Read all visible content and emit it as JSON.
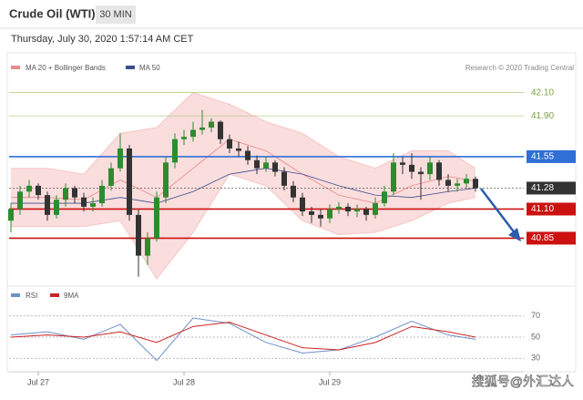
{
  "header": {
    "title": "Crude Oil (WTI)",
    "interval": "30 MIN",
    "timestamp": "Thursday, July 30, 2020 1:57:14 AM CET"
  },
  "chart_data": {
    "type": "candlestick",
    "legend": [
      "MA 20 + Bollinger Bands",
      "MA 50"
    ],
    "source": "Research © 2020 Trading Central",
    "colors": {
      "up": "#2e8b2e",
      "down": "#333333",
      "band": "#f7c6c6",
      "ma20": "#e88a8a",
      "ma50": "#3b4f8c"
    },
    "ylim": [
      40.47,
      42.23
    ],
    "xlim": [
      0,
      51
    ],
    "xticks": [
      {
        "value": 3,
        "label": "Jul 27"
      },
      {
        "value": 19,
        "label": "Jul 28"
      },
      {
        "value": 35,
        "label": "Jul 29"
      }
    ],
    "levels": [
      {
        "value": 42.1,
        "label": "42.10",
        "color": "#a9c77a",
        "style": "text"
      },
      {
        "value": 41.9,
        "label": "41.90",
        "color": "#a9c77a",
        "style": "text"
      },
      {
        "value": 41.55,
        "label": "41.55",
        "color": "#2f6fd6",
        "style": "box"
      },
      {
        "value": 41.28,
        "label": "41.28",
        "color": "#333333",
        "style": "dotted"
      },
      {
        "value": 41.1,
        "label": "41.10",
        "color": "#cc1111",
        "style": "box"
      },
      {
        "value": 40.85,
        "label": "40.85",
        "color": "#cc1111",
        "style": "box"
      }
    ],
    "opens": [
      41.0,
      41.1,
      41.25,
      41.3,
      41.22,
      41.05,
      41.18,
      41.28,
      41.2,
      41.12,
      41.15,
      41.3,
      41.45,
      41.62,
      41.05,
      40.7,
      40.85,
      41.2,
      41.5,
      41.7,
      41.72,
      41.78,
      41.8,
      41.85,
      41.7,
      41.62,
      41.6,
      41.52,
      41.45,
      41.5,
      41.42,
      41.3,
      41.2,
      41.08,
      41.05,
      41.02,
      41.1,
      41.12,
      41.08,
      41.1,
      41.05,
      41.15,
      41.25,
      41.5,
      41.48,
      41.42,
      41.4,
      41.5,
      41.35,
      41.3,
      41.32,
      41.36
    ],
    "highs": [
      41.15,
      41.3,
      41.35,
      41.32,
      41.25,
      41.22,
      41.32,
      41.3,
      41.24,
      41.2,
      41.35,
      41.5,
      41.75,
      41.65,
      41.1,
      40.9,
      41.25,
      41.55,
      41.75,
      41.78,
      41.85,
      41.95,
      41.88,
      41.86,
      41.74,
      41.68,
      41.64,
      41.56,
      41.55,
      41.52,
      41.46,
      41.34,
      41.24,
      41.12,
      41.1,
      41.14,
      41.16,
      41.15,
      41.14,
      41.12,
      41.2,
      41.3,
      41.58,
      41.55,
      41.58,
      41.46,
      41.55,
      41.52,
      41.4,
      41.36,
      41.4,
      41.38
    ],
    "lows": [
      40.9,
      41.05,
      41.2,
      41.18,
      41.0,
      41.02,
      41.12,
      41.15,
      41.08,
      41.08,
      41.12,
      41.26,
      41.42,
      41.0,
      40.52,
      40.62,
      40.82,
      41.15,
      41.45,
      41.65,
      41.68,
      41.74,
      41.76,
      41.66,
      41.58,
      41.55,
      41.48,
      41.4,
      41.42,
      41.38,
      41.26,
      41.16,
      41.04,
      40.98,
      40.95,
      40.98,
      41.06,
      41.04,
      41.03,
      41.0,
      41.02,
      41.12,
      41.22,
      41.4,
      41.36,
      41.18,
      41.35,
      41.3,
      41.25,
      41.25,
      41.28,
      41.25
    ],
    "closes": [
      41.1,
      41.25,
      41.3,
      41.22,
      41.05,
      41.18,
      41.28,
      41.2,
      41.12,
      41.15,
      41.3,
      41.45,
      41.62,
      41.05,
      40.7,
      40.85,
      41.2,
      41.5,
      41.7,
      41.72,
      41.78,
      41.8,
      41.85,
      41.7,
      41.62,
      41.6,
      41.52,
      41.45,
      41.5,
      41.42,
      41.3,
      41.2,
      41.08,
      41.05,
      41.02,
      41.1,
      41.12,
      41.08,
      41.1,
      41.05,
      41.15,
      41.25,
      41.5,
      41.48,
      41.42,
      41.4,
      41.5,
      41.35,
      41.3,
      41.32,
      41.36,
      41.28
    ],
    "indicator_x": [
      0,
      4,
      8,
      12,
      16,
      20,
      24,
      28,
      32,
      36,
      40,
      44,
      48,
      51
    ],
    "upper": [
      41.45,
      41.45,
      41.4,
      41.75,
      41.8,
      42.1,
      42.0,
      41.85,
      41.75,
      41.55,
      41.45,
      41.6,
      41.6,
      41.45
    ],
    "lower": [
      40.95,
      40.95,
      40.95,
      41.0,
      40.5,
      40.9,
      41.4,
      41.3,
      41.0,
      40.88,
      40.9,
      41.0,
      41.15,
      41.2
    ],
    "ma20": [
      41.2,
      41.2,
      41.18,
      41.35,
      41.2,
      41.45,
      41.7,
      41.6,
      41.4,
      41.22,
      41.15,
      41.3,
      41.38,
      41.34
    ],
    "ma50": [
      41.15,
      41.15,
      41.15,
      41.2,
      41.15,
      41.25,
      41.4,
      41.45,
      41.4,
      41.3,
      41.22,
      41.2,
      41.25,
      41.28
    ],
    "rsi_panel": {
      "legend": [
        "RSI",
        "9MA"
      ],
      "colors": {
        "rsi": "#6f8fc8",
        "ma9": "#cc2222"
      },
      "ylim": [
        20,
        80
      ],
      "yticks": [
        30,
        50,
        70
      ],
      "rsi": [
        52,
        55,
        48,
        62,
        28,
        68,
        63,
        45,
        35,
        38,
        50,
        65,
        52,
        48
      ],
      "ma9": [
        50,
        52,
        50,
        55,
        45,
        60,
        64,
        52,
        40,
        38,
        45,
        60,
        55,
        50
      ]
    }
  },
  "watermark": "搜狐号@外汇达人"
}
